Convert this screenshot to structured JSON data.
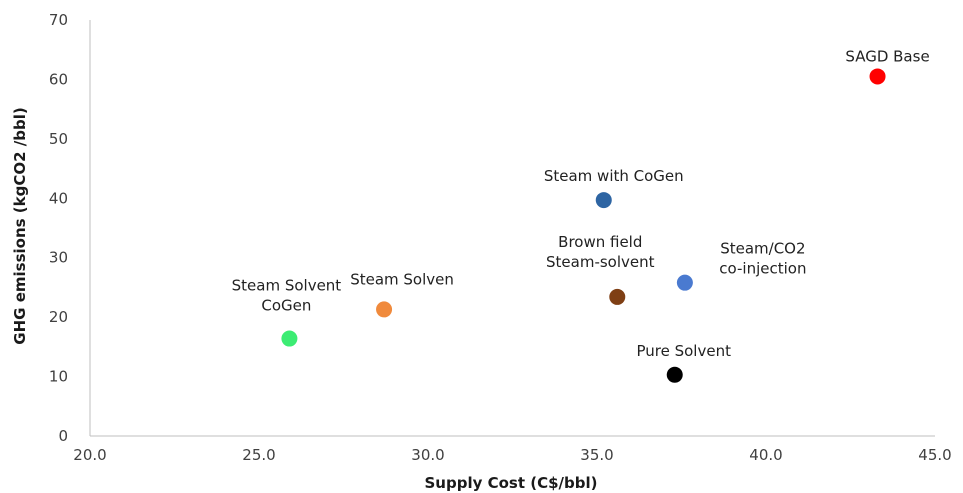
{
  "chart_data": {
    "type": "scatter",
    "title": "",
    "xlabel": "Supply Cost (C$/bbl)",
    "ylabel": "GHG emissions (kgCO2 /bbl)",
    "xlim": [
      20.0,
      45.0
    ],
    "ylim": [
      0,
      70
    ],
    "xticks": [
      "20.0",
      "25.0",
      "30.0",
      "35.0",
      "40.0",
      "45.0"
    ],
    "yticks": [
      "0",
      "10",
      "20",
      "30",
      "40",
      "50",
      "60",
      "70"
    ],
    "grid": false,
    "legend": "none",
    "points": [
      {
        "label_lines": [
          "SAGD Base"
        ],
        "x": 43.3,
        "y": 60.5,
        "color": "#ff0000"
      },
      {
        "label_lines": [
          "Steam with CoGen"
        ],
        "x": 35.2,
        "y": 39.7,
        "color": "#2e65a3"
      },
      {
        "label_lines": [
          "Brown field",
          "Steam-solvent"
        ],
        "x": 35.6,
        "y": 23.4,
        "color": "#7f3f14"
      },
      {
        "label_lines": [
          "Steam/CO2",
          "co-injection"
        ],
        "x": 37.6,
        "y": 25.8,
        "color": "#4a7ad0"
      },
      {
        "label_lines": [
          "Steam Solven"
        ],
        "x": 28.7,
        "y": 21.3,
        "color": "#f08a3c"
      },
      {
        "label_lines": [
          "Steam Solvent",
          "CoGen"
        ],
        "x": 25.9,
        "y": 16.4,
        "color": "#3cec73"
      },
      {
        "label_lines": [
          "Pure Solvent"
        ],
        "x": 37.3,
        "y": 10.3,
        "color": "#000000"
      }
    ]
  }
}
